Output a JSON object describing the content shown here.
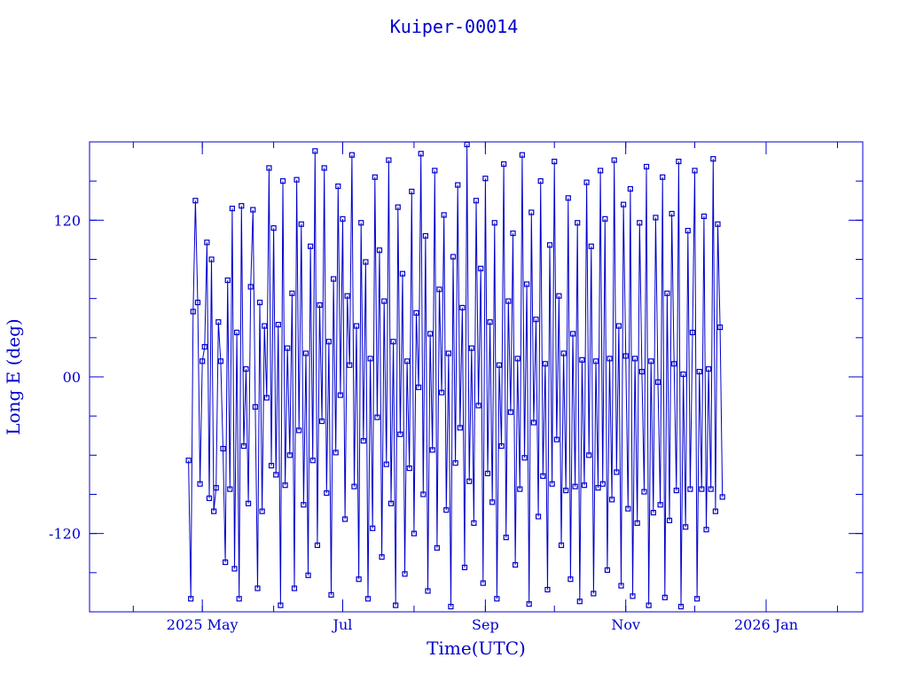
{
  "chart_data": {
    "type": "scatter",
    "title": "Kuiper-00014",
    "xlabel": "Time(UTC)",
    "ylabel": "Long E (deg)",
    "xlim": [
      "2025-03-13",
      "2026-02-12"
    ],
    "ylim": [
      -180,
      180
    ],
    "x_ticks": [
      {
        "date": "2025-05-01",
        "label": "2025 May"
      },
      {
        "date": "2025-07-01",
        "label": "Jul"
      },
      {
        "date": "2025-09-01",
        "label": "Sep"
      },
      {
        "date": "2025-11-01",
        "label": "Nov"
      },
      {
        "date": "2026-01-01",
        "label": "2026 Jan"
      }
    ],
    "y_ticks": [
      {
        "value": 120,
        "label": "120"
      },
      {
        "value": 0,
        "label": "00"
      },
      {
        "value": -120,
        "label": "-120"
      }
    ],
    "grid": false,
    "series_color": "#0000cc",
    "series": [
      {
        "name": "",
        "values": [
          [
            "2025-04-25",
            -64
          ],
          [
            "2025-04-26",
            -170
          ],
          [
            "2025-04-27",
            50
          ],
          [
            "2025-04-28",
            135
          ],
          [
            "2025-04-29",
            57
          ],
          [
            "2025-04-30",
            -82
          ],
          [
            "2025-05-01",
            12
          ],
          [
            "2025-05-02",
            23
          ],
          [
            "2025-05-03",
            103
          ],
          [
            "2025-05-04",
            -93
          ],
          [
            "2025-05-05",
            90
          ],
          [
            "2025-05-06",
            -103
          ],
          [
            "2025-05-07",
            -85
          ],
          [
            "2025-05-08",
            42
          ],
          [
            "2025-05-09",
            12
          ],
          [
            "2025-05-10",
            -55
          ],
          [
            "2025-05-11",
            -142
          ],
          [
            "2025-05-12",
            74
          ],
          [
            "2025-05-13",
            -86
          ],
          [
            "2025-05-14",
            129
          ],
          [
            "2025-05-15",
            -147
          ],
          [
            "2025-05-16",
            34
          ],
          [
            "2025-05-17",
            -170
          ],
          [
            "2025-05-18",
            131
          ],
          [
            "2025-05-19",
            -53
          ],
          [
            "2025-05-20",
            6
          ],
          [
            "2025-05-21",
            -97
          ],
          [
            "2025-05-22",
            69
          ],
          [
            "2025-05-23",
            128
          ],
          [
            "2025-05-24",
            -23
          ],
          [
            "2025-05-25",
            -162
          ],
          [
            "2025-05-26",
            57
          ],
          [
            "2025-05-27",
            -103
          ],
          [
            "2025-05-28",
            39
          ],
          [
            "2025-05-29",
            -16
          ],
          [
            "2025-05-30",
            160
          ],
          [
            "2025-05-31",
            -68
          ],
          [
            "2025-06-01",
            114
          ],
          [
            "2025-06-02",
            -75
          ],
          [
            "2025-06-03",
            40
          ],
          [
            "2025-06-04",
            -175
          ],
          [
            "2025-06-05",
            150
          ],
          [
            "2025-06-06",
            -83
          ],
          [
            "2025-06-07",
            22
          ],
          [
            "2025-06-08",
            -60
          ],
          [
            "2025-06-09",
            64
          ],
          [
            "2025-06-10",
            -162
          ],
          [
            "2025-06-11",
            151
          ],
          [
            "2025-06-12",
            -41
          ],
          [
            "2025-06-13",
            117
          ],
          [
            "2025-06-14",
            -98
          ],
          [
            "2025-06-15",
            18
          ],
          [
            "2025-06-16",
            -152
          ],
          [
            "2025-06-17",
            100
          ],
          [
            "2025-06-18",
            -64
          ],
          [
            "2025-06-19",
            173
          ],
          [
            "2025-06-20",
            -129
          ],
          [
            "2025-06-21",
            55
          ],
          [
            "2025-06-22",
            -34
          ],
          [
            "2025-06-23",
            160
          ],
          [
            "2025-06-24",
            -89
          ],
          [
            "2025-06-25",
            27
          ],
          [
            "2025-06-26",
            -167
          ],
          [
            "2025-06-27",
            75
          ],
          [
            "2025-06-28",
            -58
          ],
          [
            "2025-06-29",
            146
          ],
          [
            "2025-06-30",
            -14
          ],
          [
            "2025-07-01",
            121
          ],
          [
            "2025-07-02",
            -109
          ],
          [
            "2025-07-03",
            62
          ],
          [
            "2025-07-04",
            9
          ],
          [
            "2025-07-05",
            170
          ],
          [
            "2025-07-06",
            -84
          ],
          [
            "2025-07-07",
            39
          ],
          [
            "2025-07-08",
            -155
          ],
          [
            "2025-07-09",
            118
          ],
          [
            "2025-07-10",
            -49
          ],
          [
            "2025-07-11",
            88
          ],
          [
            "2025-07-12",
            -170
          ],
          [
            "2025-07-13",
            14
          ],
          [
            "2025-07-14",
            -116
          ],
          [
            "2025-07-15",
            153
          ],
          [
            "2025-07-16",
            -31
          ],
          [
            "2025-07-17",
            97
          ],
          [
            "2025-07-18",
            -138
          ],
          [
            "2025-07-19",
            58
          ],
          [
            "2025-07-20",
            -67
          ],
          [
            "2025-07-21",
            166
          ],
          [
            "2025-07-22",
            -97
          ],
          [
            "2025-07-23",
            27
          ],
          [
            "2025-07-24",
            -175
          ],
          [
            "2025-07-25",
            130
          ],
          [
            "2025-07-26",
            -44
          ],
          [
            "2025-07-27",
            79
          ],
          [
            "2025-07-28",
            -151
          ],
          [
            "2025-07-29",
            12
          ],
          [
            "2025-07-30",
            -70
          ],
          [
            "2025-07-31",
            142
          ],
          [
            "2025-08-01",
            -120
          ],
          [
            "2025-08-02",
            49
          ],
          [
            "2025-08-03",
            -8
          ],
          [
            "2025-08-04",
            171
          ],
          [
            "2025-08-05",
            -90
          ],
          [
            "2025-08-06",
            108
          ],
          [
            "2025-08-07",
            -164
          ],
          [
            "2025-08-08",
            33
          ],
          [
            "2025-08-09",
            -56
          ],
          [
            "2025-08-10",
            158
          ],
          [
            "2025-08-11",
            -131
          ],
          [
            "2025-08-12",
            67
          ],
          [
            "2025-08-13",
            -12
          ],
          [
            "2025-08-14",
            124
          ],
          [
            "2025-08-15",
            -102
          ],
          [
            "2025-08-16",
            18
          ],
          [
            "2025-08-17",
            -176
          ],
          [
            "2025-08-18",
            92
          ],
          [
            "2025-08-19",
            -66
          ],
          [
            "2025-08-20",
            147
          ],
          [
            "2025-08-21",
            -39
          ],
          [
            "2025-08-22",
            53
          ],
          [
            "2025-08-23",
            -146
          ],
          [
            "2025-08-24",
            178
          ],
          [
            "2025-08-25",
            -80
          ],
          [
            "2025-08-26",
            22
          ],
          [
            "2025-08-27",
            -112
          ],
          [
            "2025-08-28",
            135
          ],
          [
            "2025-08-29",
            -22
          ],
          [
            "2025-08-30",
            83
          ],
          [
            "2025-08-31",
            -158
          ],
          [
            "2025-09-01",
            152
          ],
          [
            "2025-09-02",
            -74
          ],
          [
            "2025-09-03",
            42
          ],
          [
            "2025-09-04",
            -96
          ],
          [
            "2025-09-05",
            118
          ],
          [
            "2025-09-06",
            -170
          ],
          [
            "2025-09-07",
            9
          ],
          [
            "2025-09-08",
            -53
          ],
          [
            "2025-09-09",
            163
          ],
          [
            "2025-09-10",
            -123
          ],
          [
            "2025-09-11",
            58
          ],
          [
            "2025-09-12",
            -27
          ],
          [
            "2025-09-13",
            110
          ],
          [
            "2025-09-14",
            -144
          ],
          [
            "2025-09-15",
            14
          ],
          [
            "2025-09-16",
            -86
          ],
          [
            "2025-09-17",
            170
          ],
          [
            "2025-09-18",
            -62
          ],
          [
            "2025-09-19",
            71
          ],
          [
            "2025-09-20",
            -174
          ],
          [
            "2025-09-21",
            126
          ],
          [
            "2025-09-22",
            -35
          ],
          [
            "2025-09-23",
            44
          ],
          [
            "2025-09-24",
            -107
          ],
          [
            "2025-09-25",
            150
          ],
          [
            "2025-09-26",
            -76
          ],
          [
            "2025-09-27",
            10
          ],
          [
            "2025-09-28",
            -163
          ],
          [
            "2025-09-29",
            101
          ],
          [
            "2025-09-30",
            -82
          ],
          [
            "2025-10-01",
            165
          ],
          [
            "2025-10-02",
            -48
          ],
          [
            "2025-10-03",
            62
          ],
          [
            "2025-10-04",
            -129
          ],
          [
            "2025-10-05",
            18
          ],
          [
            "2025-10-06",
            -87
          ],
          [
            "2025-10-07",
            137
          ],
          [
            "2025-10-08",
            -155
          ],
          [
            "2025-10-09",
            33
          ],
          [
            "2025-10-10",
            -84
          ],
          [
            "2025-10-11",
            118
          ],
          [
            "2025-10-12",
            -172
          ],
          [
            "2025-10-13",
            13
          ],
          [
            "2025-10-14",
            -83
          ],
          [
            "2025-10-15",
            149
          ],
          [
            "2025-10-16",
            -60
          ],
          [
            "2025-10-17",
            100
          ],
          [
            "2025-10-18",
            -166
          ],
          [
            "2025-10-19",
            12
          ],
          [
            "2025-10-20",
            -85
          ],
          [
            "2025-10-21",
            158
          ],
          [
            "2025-10-22",
            -82
          ],
          [
            "2025-10-23",
            121
          ],
          [
            "2025-10-24",
            -148
          ],
          [
            "2025-10-25",
            14
          ],
          [
            "2025-10-26",
            -94
          ],
          [
            "2025-10-27",
            166
          ],
          [
            "2025-10-28",
            -73
          ],
          [
            "2025-10-29",
            39
          ],
          [
            "2025-10-30",
            -160
          ],
          [
            "2025-10-31",
            132
          ],
          [
            "2025-11-01",
            16
          ],
          [
            "2025-11-02",
            -101
          ],
          [
            "2025-11-03",
            144
          ],
          [
            "2025-11-04",
            -168
          ],
          [
            "2025-11-05",
            14
          ],
          [
            "2025-11-06",
            -112
          ],
          [
            "2025-11-07",
            118
          ],
          [
            "2025-11-08",
            4
          ],
          [
            "2025-11-09",
            -88
          ],
          [
            "2025-11-10",
            161
          ],
          [
            "2025-11-11",
            -175
          ],
          [
            "2025-11-12",
            12
          ],
          [
            "2025-11-13",
            -104
          ],
          [
            "2025-11-14",
            122
          ],
          [
            "2025-11-15",
            -4
          ],
          [
            "2025-11-16",
            -98
          ],
          [
            "2025-11-17",
            153
          ],
          [
            "2025-11-18",
            -169
          ],
          [
            "2025-11-19",
            64
          ],
          [
            "2025-11-20",
            -110
          ],
          [
            "2025-11-21",
            125
          ],
          [
            "2025-11-22",
            10
          ],
          [
            "2025-11-23",
            -87
          ],
          [
            "2025-11-24",
            165
          ],
          [
            "2025-11-25",
            -176
          ],
          [
            "2025-11-26",
            2
          ],
          [
            "2025-11-27",
            -115
          ],
          [
            "2025-11-28",
            112
          ],
          [
            "2025-11-29",
            -86
          ],
          [
            "2025-11-30",
            34
          ],
          [
            "2025-12-01",
            158
          ],
          [
            "2025-12-02",
            -170
          ],
          [
            "2025-12-03",
            4
          ],
          [
            "2025-12-04",
            -86
          ],
          [
            "2025-12-05",
            123
          ],
          [
            "2025-12-06",
            -117
          ],
          [
            "2025-12-07",
            6
          ],
          [
            "2025-12-08",
            -86
          ],
          [
            "2025-12-09",
            167
          ],
          [
            "2025-12-10",
            -103
          ],
          [
            "2025-12-11",
            117
          ],
          [
            "2025-12-12",
            38
          ],
          [
            "2025-12-13",
            -92
          ]
        ]
      }
    ]
  }
}
